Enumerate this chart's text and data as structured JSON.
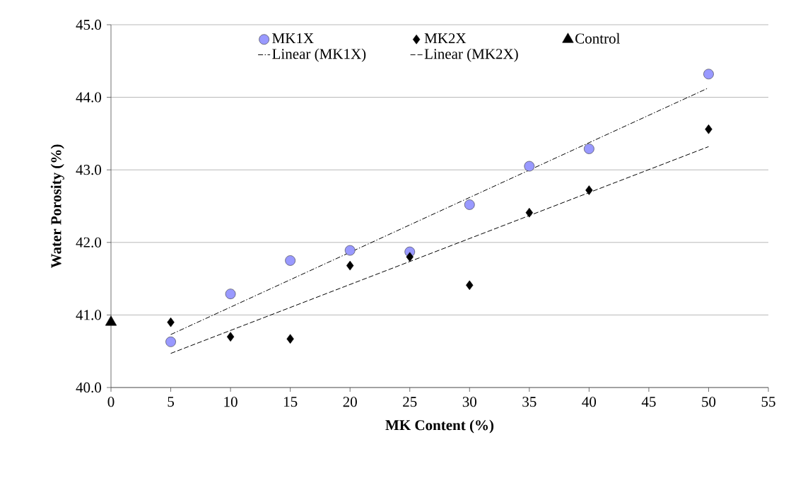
{
  "chart_data": {
    "type": "scatter",
    "xlabel": "MK Content (%)",
    "ylabel": "Water Porosity (%)",
    "xlim": [
      0,
      55
    ],
    "xticks": [
      0,
      5,
      10,
      15,
      20,
      25,
      30,
      35,
      40,
      45,
      50,
      55
    ],
    "ylim": [
      40,
      45
    ],
    "yticks": [
      {
        "value": 40,
        "label": "40.0"
      },
      {
        "value": 41,
        "label": "41.0"
      },
      {
        "value": 42,
        "label": "42.0"
      },
      {
        "value": 43,
        "label": "43.0"
      },
      {
        "value": 44,
        "label": "44.0"
      },
      {
        "value": 45,
        "label": "45.0"
      }
    ],
    "grid": "y",
    "legend": "top",
    "series": [
      {
        "name": "MK1X",
        "color": "#9999ff",
        "marker": "circle",
        "x": [
          5,
          10,
          15,
          20,
          25,
          30,
          35,
          40,
          50
        ],
        "values": [
          40.63,
          41.29,
          41.75,
          41.89,
          41.87,
          42.52,
          43.05,
          43.29,
          44.32
        ]
      },
      {
        "name": "MK2X",
        "color": "#000000",
        "marker": "diamond",
        "x": [
          5,
          10,
          15,
          20,
          25,
          30,
          35,
          40,
          50
        ],
        "values": [
          40.9,
          40.7,
          40.67,
          41.68,
          41.8,
          41.41,
          42.41,
          42.72,
          43.56
        ]
      },
      {
        "name": "Control",
        "color": "#000000",
        "marker": "triangle",
        "x": [
          0
        ],
        "values": [
          40.9
        ]
      },
      {
        "name": "Linear (MK1X)",
        "type": "line",
        "color": "#000000",
        "line_style": "dashdot",
        "x": [
          5,
          50
        ],
        "values": [
          40.73,
          44.13
        ]
      },
      {
        "name": "Linear (MK2X)",
        "type": "line",
        "color": "#000000",
        "line_style": "dashed",
        "x": [
          5,
          50
        ],
        "values": [
          40.47,
          43.32
        ]
      }
    ]
  }
}
